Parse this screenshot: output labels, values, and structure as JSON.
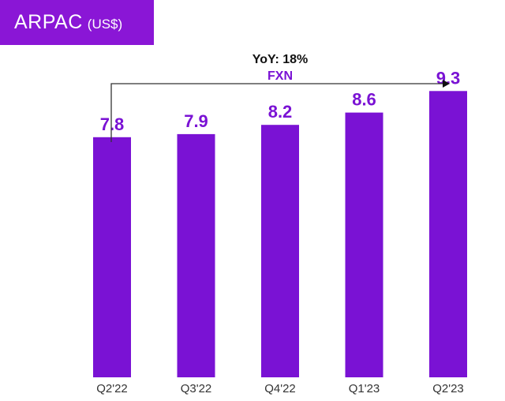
{
  "header": {
    "title": "ARPAC",
    "unit": "(US$)",
    "title_bg_color": "#8a16d6"
  },
  "annotation": {
    "line1": "YoY: 18%",
    "line2": "FXN",
    "line1_color": "#111111",
    "line2_color": "#7a12d4"
  },
  "chart_data": {
    "type": "bar",
    "title": "ARPAC (US$)",
    "categories": [
      "Q2'22",
      "Q3'22",
      "Q4'22",
      "Q1'23",
      "Q2'23"
    ],
    "values": [
      7.8,
      7.9,
      8.2,
      8.6,
      9.3
    ],
    "value_labels": [
      "7.8",
      "7.9",
      "8.2",
      "8.6",
      "9.3"
    ],
    "xlabel": "",
    "ylabel": "",
    "ylim": [
      0,
      10
    ],
    "grid": false,
    "legend": "none",
    "bar_color": "#7a12d4",
    "label_color": "#7a12d4",
    "tick_color": "#333333"
  }
}
